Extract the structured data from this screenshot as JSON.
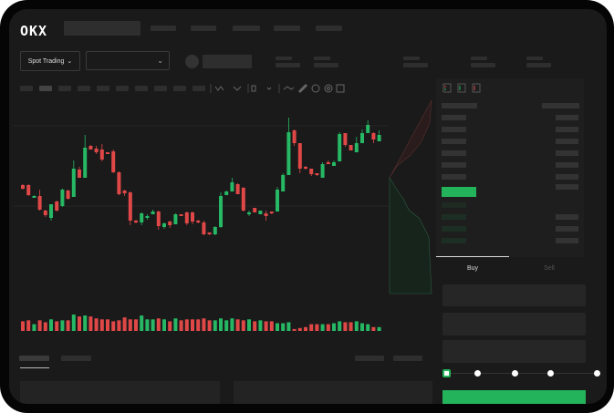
{
  "header": {
    "logo": "OKX"
  },
  "toolbar": {
    "spot_trading_label": "Spot Trading",
    "chevron": "⌄"
  },
  "chart_icons": [
    "line-type-icon",
    "indicator-icon",
    "compare-icon",
    "wave-icon",
    "ruler-icon",
    "camera-icon",
    "target-icon",
    "fullscreen-icon"
  ],
  "orderbook": {
    "layout_icons": [
      "both-sides-icon",
      "buy-side-icon",
      "sell-side-icon"
    ]
  },
  "order_form": {
    "tabs": [
      {
        "label": "Buy",
        "active": true
      },
      {
        "label": "Sell",
        "active": false
      }
    ],
    "slider_levels_percent": [
      0,
      25,
      50,
      75,
      100
    ],
    "slider_value_percent": 0
  },
  "colors": {
    "up": "#26b865",
    "down": "#e04848",
    "background": "#1a1a1a",
    "accent": "#23b35a"
  },
  "chart_data": {
    "type": "candlestick",
    "ohlc": [
      [
        67,
        68,
        62,
        63
      ],
      [
        67,
        68,
        55,
        56
      ],
      [
        53,
        56,
        53,
        55
      ],
      [
        55,
        62,
        39,
        40
      ],
      [
        39,
        40,
        32,
        34
      ],
      [
        31,
        46,
        28,
        46
      ],
      [
        49,
        50,
        38,
        39
      ],
      [
        44,
        63,
        43,
        62
      ],
      [
        61,
        62,
        51,
        52
      ],
      [
        54,
        94,
        54,
        85
      ],
      [
        84,
        87,
        75,
        75
      ],
      [
        75,
        122,
        75,
        108
      ],
      [
        110,
        111,
        106,
        106
      ],
      [
        107,
        110,
        101,
        103
      ],
      [
        106,
        112,
        93,
        95
      ],
      [
        103,
        103,
        101,
        101
      ],
      [
        104,
        106,
        80,
        81
      ],
      [
        81,
        82,
        56,
        57
      ],
      [
        61,
        62,
        55,
        58
      ],
      [
        59,
        60,
        23,
        28
      ],
      [
        28,
        29,
        25,
        26
      ],
      [
        26,
        37,
        23,
        36
      ],
      [
        31,
        35,
        29,
        33
      ],
      [
        35,
        40,
        35,
        38
      ],
      [
        38,
        39,
        18,
        22
      ],
      [
        21,
        26,
        19,
        25
      ],
      [
        27,
        28,
        20,
        23
      ],
      [
        24,
        36,
        24,
        35
      ],
      [
        35,
        35,
        33,
        33
      ],
      [
        37,
        38,
        23,
        25
      ],
      [
        37,
        38,
        24,
        27
      ],
      [
        28,
        29,
        25,
        26
      ],
      [
        26,
        28,
        12,
        13
      ],
      [
        15,
        15,
        12,
        13
      ],
      [
        13,
        22,
        12,
        21
      ],
      [
        21,
        59,
        20,
        55
      ],
      [
        56,
        61,
        56,
        60
      ],
      [
        60,
        75,
        60,
        70
      ],
      [
        68,
        69,
        57,
        57
      ],
      [
        64,
        65,
        38,
        39
      ],
      [
        35,
        39,
        33,
        37
      ],
      [
        42,
        42,
        37,
        37
      ],
      [
        35,
        39,
        35,
        39
      ],
      [
        36,
        39,
        28,
        33
      ],
      [
        38,
        38,
        35,
        36
      ],
      [
        38,
        65,
        38,
        62
      ],
      [
        60,
        80,
        60,
        78
      ],
      [
        78,
        141,
        78,
        125
      ],
      [
        127,
        128,
        110,
        113
      ],
      [
        113,
        113,
        80,
        85
      ],
      [
        87,
        88,
        84,
        85
      ],
      [
        85,
        85,
        77,
        79
      ],
      [
        80,
        80,
        77,
        78
      ],
      [
        75,
        92,
        75,
        90
      ],
      [
        92,
        94,
        90,
        90
      ],
      [
        88,
        94,
        88,
        92
      ],
      [
        93,
        125,
        93,
        123
      ],
      [
        124,
        124,
        109,
        111
      ],
      [
        111,
        111,
        105,
        105
      ],
      [
        103,
        120,
        103,
        113
      ],
      [
        113,
        128,
        113,
        124
      ],
      [
        124,
        138,
        124,
        133
      ],
      [
        124,
        125,
        113,
        117
      ],
      [
        115,
        127,
        115,
        122
      ]
    ],
    "volume": [
      10,
      11,
      7,
      11,
      9,
      12,
      10,
      11,
      11,
      17,
      15,
      16,
      15,
      13,
      12,
      12,
      10,
      11,
      14,
      12,
      12,
      16,
      12,
      12,
      13,
      12,
      10,
      13,
      11,
      12,
      12,
      12,
      13,
      11,
      11,
      13,
      11,
      13,
      12,
      11,
      12,
      10,
      11,
      10,
      10,
      8,
      8,
      9,
      2,
      3,
      4,
      7,
      7,
      7,
      7,
      8,
      10,
      9,
      9,
      10,
      8,
      7,
      4,
      4
    ],
    "price_range": [
      0,
      160
    ]
  }
}
